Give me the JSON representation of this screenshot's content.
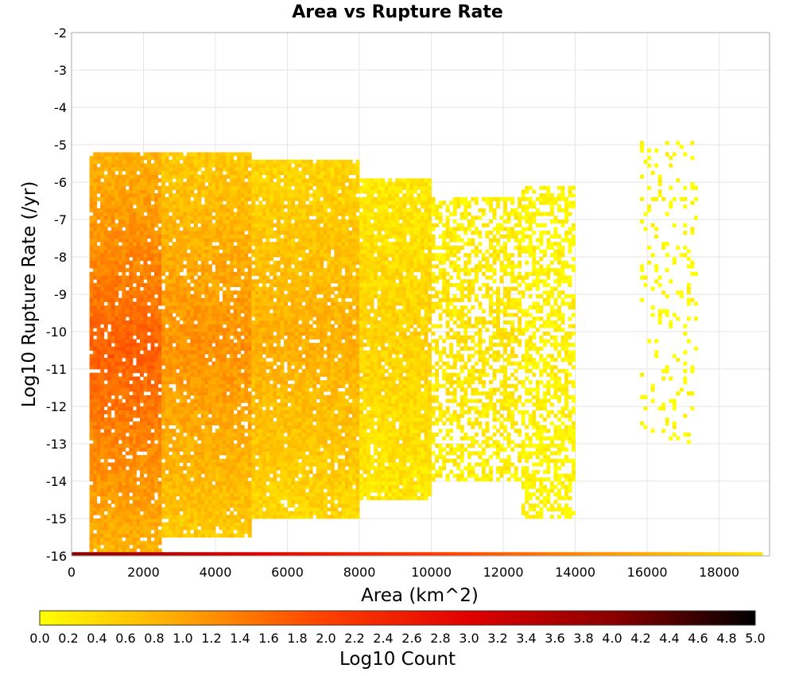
{
  "chart_data": {
    "type": "heatmap",
    "title": "Area vs Rupture Rate",
    "xlabel": "Area (km^2)",
    "ylabel": "Log10 Rupture Rate (/yr)",
    "xlim": [
      0,
      19400
    ],
    "ylim": [
      -16,
      -2
    ],
    "x_ticks": [
      "0",
      "2000",
      "4000",
      "6000",
      "8000",
      "10000",
      "12000",
      "14000",
      "16000",
      "18000"
    ],
    "y_ticks": [
      "-2",
      "-3",
      "-4",
      "-5",
      "-6",
      "-7",
      "-8",
      "-9",
      "-10",
      "-11",
      "-12",
      "-13",
      "-14",
      "-15",
      "-16"
    ],
    "grid": true,
    "colorbar": {
      "label": "Log10 Count",
      "range": [
        0.0,
        5.0
      ],
      "ticks": [
        "0.0",
        "0.2",
        "0.4",
        "0.6",
        "0.8",
        "1.0",
        "1.2",
        "1.4",
        "1.6",
        "1.8",
        "2.0",
        "2.2",
        "2.4",
        "2.6",
        "2.8",
        "3.0",
        "3.2",
        "3.4",
        "3.6",
        "3.8",
        "4.0",
        "4.2",
        "4.4",
        "4.6",
        "4.8",
        "5.0"
      ],
      "colormap": [
        "#ffff00",
        "#ffa500",
        "#ff4000",
        "#e00000",
        "#8b0000",
        "#000000"
      ]
    },
    "bin_width_x": 100,
    "bin_height_y": 0.1,
    "density_regions": [
      {
        "x_range": [
          500,
          2500
        ],
        "y_range": [
          -15.9,
          -5.3
        ],
        "log10_count": 1.7
      },
      {
        "x_range": [
          2500,
          5000
        ],
        "y_range": [
          -15.5,
          -5.3
        ],
        "log10_count": 1.2
      },
      {
        "x_range": [
          5000,
          8000
        ],
        "y_range": [
          -15.0,
          -5.5
        ],
        "log10_count": 0.9
      },
      {
        "x_range": [
          8000,
          10000
        ],
        "y_range": [
          -14.5,
          -6.0
        ],
        "log10_count": 0.5
      },
      {
        "x_range": [
          10000,
          12500
        ],
        "y_range": [
          -14.0,
          -6.5
        ],
        "log10_count": 0.3
      },
      {
        "x_range": [
          12500,
          14000
        ],
        "y_range": [
          -15.0,
          -6.2
        ],
        "log10_count": 0.15
      },
      {
        "x_range": [
          15800,
          17400
        ],
        "y_range": [
          -13.0,
          -5.0
        ],
        "log10_count": 0.0
      }
    ],
    "bottom_row": {
      "y_range": [
        -16.0,
        -15.9
      ],
      "x_range": [
        0,
        19200
      ],
      "log10_count": [
        4.0,
        0.3
      ]
    }
  }
}
